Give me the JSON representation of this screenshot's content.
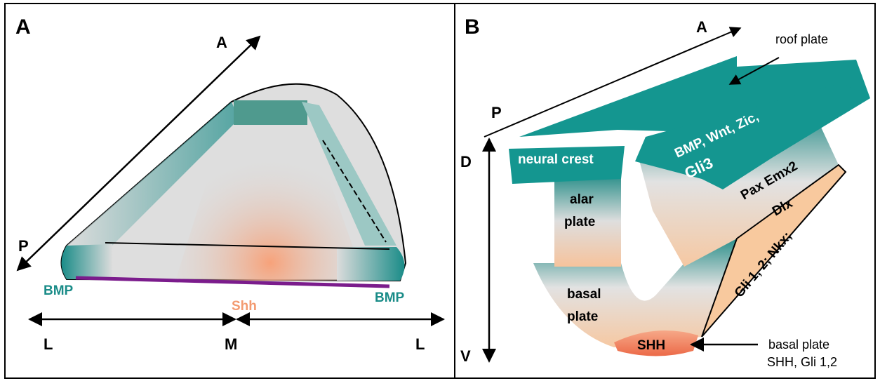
{
  "panel_a": {
    "label": "A",
    "anterior": "A",
    "posterior": "P",
    "lateral_left": "L",
    "medial": "M",
    "lateral_right": "L",
    "bmp_left": "BMP",
    "shh": "Shh",
    "bmp_right": "BMP"
  },
  "panel_b": {
    "label": "B",
    "anterior": "A",
    "posterior": "P",
    "dorsal": "D",
    "ventral": "V",
    "roof_plate": "roof plate",
    "neural_crest": "neural crest",
    "signals_line1": "BMP, Wnt, Zic,",
    "signals_line2": "Gli3",
    "alar_plate": [
      "alar",
      "plate"
    ],
    "basal_plate": [
      "basal",
      "plate"
    ],
    "pax_emx2": "Pax Emx2",
    "dlx": "Dlx",
    "gli_nkx": "Gli 1, 2; Nkx;",
    "shh": "SHH",
    "callout": [
      "basal plate",
      "SHH, Gli 1,2"
    ]
  }
}
